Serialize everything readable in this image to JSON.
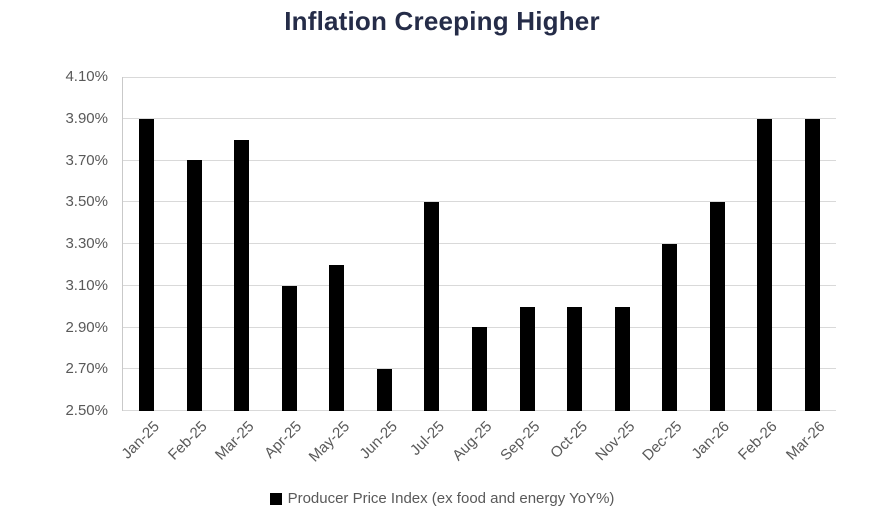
{
  "title": "Inflation Creeping Higher",
  "colors": {
    "title_text": "#252c48",
    "bar_fill": "#000000",
    "gridline": "#d9d9d9",
    "axis_line": "#c9c9c9",
    "tick_label": "#595959",
    "legend_text": "#595959",
    "legend_marker": "#000000",
    "background": "#ffffff"
  },
  "legend": {
    "label": "Producer Price Index (ex food and energy YoY%)",
    "position": "bottom",
    "marker": "black-square"
  },
  "chart_data": {
    "type": "bar",
    "title": "Inflation Creeping Higher",
    "xlabel": "",
    "ylabel": "",
    "categories": [
      "Jan-25",
      "Feb-25",
      "Mar-25",
      "Apr-25",
      "May-25",
      "Jun-25",
      "Jul-25",
      "Aug-25",
      "Sep-25",
      "Oct-25",
      "Nov-25",
      "Dec-25",
      "Jan-26",
      "Feb-26",
      "Mar-26"
    ],
    "values": [
      3.9,
      3.7,
      3.8,
      3.1,
      3.2,
      2.7,
      3.5,
      2.9,
      3.0,
      3.0,
      3.0,
      3.3,
      3.5,
      3.9,
      3.9
    ],
    "unit": "percent YoY",
    "series_name": "Producer Price Index (ex food and energy YoY%)",
    "ylim": [
      2.5,
      4.1
    ],
    "ytick_step": 0.2,
    "ytick_labels": [
      "4.10%",
      "3.90%",
      "3.70%",
      "3.50%",
      "3.30%",
      "3.10%",
      "2.90%",
      "2.70%",
      "2.50%"
    ],
    "grid": "horizontal",
    "legend_position": "bottom",
    "xtick_rotation_deg": 45
  }
}
